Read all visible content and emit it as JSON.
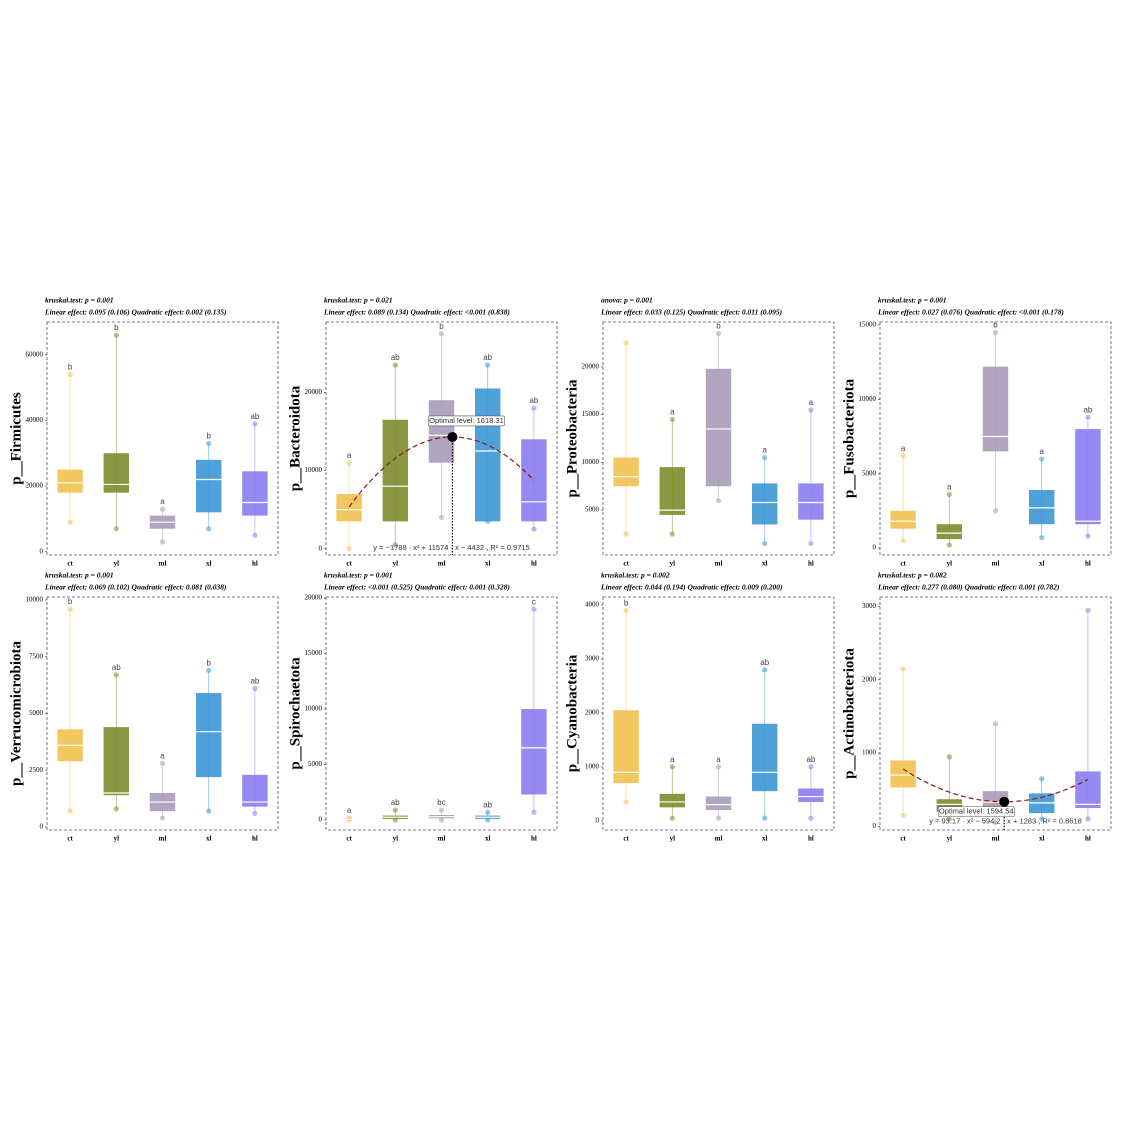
{
  "chart_data": [
    {
      "type": "box",
      "ylabel": "p__Firmicutes",
      "test": "kruskal.test: p = 0.001",
      "effects": "Linear effect: 0.095 (0.106)  Quadratic effect: 0.002 (0.135)",
      "categories": [
        "ct",
        "yl",
        "ml",
        "xl",
        "hl"
      ],
      "colors": [
        "#f2c14e",
        "#7d8b2c",
        "#a89bb8",
        "#3d97d6",
        "#8b7cf0"
      ],
      "min": [
        9000,
        7000,
        3000,
        7000,
        5000
      ],
      "q1": [
        18000,
        18000,
        7000,
        12000,
        11000
      ],
      "median": [
        21000,
        20500,
        9000,
        22000,
        15000
      ],
      "q3": [
        25000,
        30000,
        11000,
        28000,
        24500
      ],
      "max": [
        54000,
        66000,
        13000,
        33000,
        39000
      ],
      "letters": [
        "b",
        "b",
        "a",
        "b",
        "ab"
      ],
      "ylim": [
        -1000,
        70000
      ],
      "yticks": [
        0,
        20000,
        40000,
        60000
      ]
    },
    {
      "type": "box",
      "ylabel": "p__Bacteroidota",
      "test": "kruskal.test: p = 0.021",
      "effects": "Linear effect: 0.089 (0.134)  Quadratic effect: <0.001 (0.838)",
      "categories": [
        "ct",
        "yl",
        "ml",
        "xl",
        "hl"
      ],
      "colors": [
        "#f2c14e",
        "#7d8b2c",
        "#a89bb8",
        "#3d97d6",
        "#8b7cf0"
      ],
      "min": [
        0,
        500,
        4000,
        3500,
        2500
      ],
      "q1": [
        3500,
        3500,
        11000,
        3500,
        3500
      ],
      "median": [
        5000,
        8000,
        14500,
        12500,
        6000
      ],
      "q3": [
        7000,
        16500,
        19000,
        20500,
        14000
      ],
      "max": [
        11000,
        23500,
        27500,
        23500,
        18000
      ],
      "letters": [
        "a",
        "ab",
        "b",
        "ab",
        "ab"
      ],
      "ylim": [
        -800,
        29000
      ],
      "yticks": [
        0,
        10000,
        20000
      ],
      "fit": {
        "a": -1788,
        "b": 11574,
        "c": -4432,
        "optimal_label": "Optimal level: 1618.31",
        "equation": "y = −1788 · x² + 11574 · x − 4432 , R² = 0.9715"
      }
    },
    {
      "type": "box",
      "ylabel": "p__Proteobacteria",
      "test": "anova: p = 0.001",
      "effects": "Linear effect: 0.033 (0.125)  Quadratic effect: 0.011 (0.095)",
      "categories": [
        "ct",
        "yl",
        "ml",
        "xl",
        "hl"
      ],
      "colors": [
        "#f2c14e",
        "#7d8b2c",
        "#a89bb8",
        "#3d97d6",
        "#8b7cf0"
      ],
      "min": [
        2500,
        2500,
        6000,
        1500,
        1500
      ],
      "q1": [
        7500,
        4500,
        7500,
        3500,
        4000
      ],
      "median": [
        8500,
        5000,
        13500,
        5800,
        5800
      ],
      "q3": [
        10500,
        9500,
        19800,
        7800,
        7800
      ],
      "max": [
        22500,
        14500,
        23500,
        10500,
        15500
      ],
      "letters": [
        null,
        "a",
        "b",
        "a",
        "a"
      ],
      "ylim": [
        300,
        24700
      ],
      "yticks": [
        5000,
        10000,
        15000,
        20000
      ]
    },
    {
      "type": "box",
      "ylabel": "p__Fusobacteriota",
      "test": "kruskal.test: p = 0.001",
      "effects": "Linear effect: 0.027 (0.076)  Quadratic effect: <0.001 (0.178)",
      "categories": [
        "ct",
        "yl",
        "ml",
        "xl",
        "hl"
      ],
      "colors": [
        "#f2c14e",
        "#7d8b2c",
        "#a89bb8",
        "#3d97d6",
        "#8b7cf0"
      ],
      "min": [
        500,
        200,
        2500,
        700,
        800
      ],
      "q1": [
        1300,
        600,
        6500,
        1600,
        1600
      ],
      "median": [
        1800,
        1000,
        7500,
        2700,
        1800
      ],
      "q3": [
        2500,
        1600,
        12200,
        3900,
        8000
      ],
      "max": [
        6200,
        3600,
        14500,
        6000,
        8800
      ],
      "letters": [
        "a",
        "a",
        "b",
        "a",
        "ab"
      ],
      "ylim": [
        -470,
        15200
      ],
      "yticks": [
        0,
        5000,
        10000,
        15000
      ]
    },
    {
      "type": "box",
      "ylabel": "p__Verrucomicrobiota",
      "test": "kruskal.test: p = 0.001",
      "effects": "Linear effect: 0.069 (0.102)  Quadratic effect: 0.081 (0.038)",
      "categories": [
        "ct",
        "yl",
        "ml",
        "xl",
        "hl"
      ],
      "colors": [
        "#f2c14e",
        "#7d8b2c",
        "#a89bb8",
        "#3d97d6",
        "#8b7cf0"
      ],
      "min": [
        700,
        800,
        400,
        700,
        600
      ],
      "q1": [
        2900,
        1400,
        700,
        2200,
        900
      ],
      "median": [
        3600,
        1500,
        1100,
        4200,
        1100
      ],
      "q3": [
        4300,
        4400,
        1500,
        5900,
        2300
      ],
      "max": [
        9600,
        6700,
        2800,
        6900,
        6100
      ],
      "letters": [
        "b",
        "ab",
        "a",
        "b",
        "ab"
      ],
      "ylim": [
        -130,
        10130
      ],
      "yticks": [
        0,
        2500,
        5000,
        7500,
        10000
      ]
    },
    {
      "type": "box",
      "ylabel": "p__Spirochaetota",
      "test": "kruskal.test: p = 0.001",
      "effects": "Linear effect: <0.001 (0.525)  Quadratic effect: 0.001 (0.328)",
      "categories": [
        "ct",
        "yl",
        "ml",
        "xl",
        "hl"
      ],
      "colors": [
        "#f2c14e",
        "#7d8b2c",
        "#a89bb8",
        "#3d97d6",
        "#8b7cf0"
      ],
      "min": [
        0,
        0,
        0,
        0,
        700
      ],
      "q1": [
        0,
        100,
        150,
        100,
        2300
      ],
      "median": [
        50,
        250,
        300,
        250,
        6500
      ],
      "q3": [
        100,
        400,
        450,
        400,
        10000
      ],
      "max": [
        200,
        900,
        900,
        700,
        19000
      ],
      "letters": [
        "a",
        "ab",
        "bc",
        "ab",
        "c"
      ],
      "ylim": [
        -900,
        20100
      ],
      "yticks": [
        0,
        5000,
        10000,
        15000,
        20000
      ]
    },
    {
      "type": "box",
      "ylabel": "p__Cyanobacteria",
      "test": "kruskal.test: p = 0.002",
      "effects": "Linear effect: 0.044 (0.194)  Quadratic effect: 0.009 (0.200)",
      "categories": [
        "ct",
        "yl",
        "ml",
        "xl",
        "hl"
      ],
      "colors": [
        "#f2c14e",
        "#7d8b2c",
        "#a89bb8",
        "#3d97d6",
        "#8b7cf0"
      ],
      "min": [
        350,
        50,
        50,
        50,
        50
      ],
      "q1": [
        700,
        250,
        200,
        550,
        350
      ],
      "median": [
        900,
        350,
        300,
        900,
        450
      ],
      "q3": [
        2050,
        500,
        450,
        1800,
        600
      ],
      "max": [
        3900,
        1000,
        1000,
        2800,
        1000
      ],
      "letters": [
        "b",
        "a",
        "a",
        "ab",
        "ab"
      ],
      "ylim": [
        -170,
        4150
      ],
      "yticks": [
        0,
        1000,
        2000,
        3000,
        4000
      ]
    },
    {
      "type": "box",
      "ylabel": "p__Actinobacteriota",
      "test": "kruskal.test: p = 0.082",
      "effects": "Linear effect: 0.277 (0.080)  Quadratic effect: 0.001 (0.782)",
      "categories": [
        "ct",
        "yl",
        "ml",
        "xl",
        "hl"
      ],
      "colors": [
        "#f2c14e",
        "#7d8b2c",
        "#a89bb8",
        "#3d97d6",
        "#8b7cf0"
      ],
      "min": [
        150,
        100,
        50,
        100,
        100
      ],
      "q1": [
        530,
        200,
        180,
        180,
        250
      ],
      "median": [
        700,
        300,
        330,
        320,
        300
      ],
      "q3": [
        900,
        370,
        480,
        450,
        750
      ],
      "max": [
        2150,
        950,
        1400,
        650,
        2950
      ],
      "ylim": [
        -50,
        3130
      ],
      "yticks": [
        0,
        1000,
        2000,
        3000
      ],
      "fit": {
        "a": 93.17,
        "b": -594.2,
        "c": 1283,
        "optimal_label": "Optimal level: 1594.54",
        "equation": "y = 93.17 · x² − 594.2 · x + 1283 , R² = 0.8618"
      }
    }
  ]
}
